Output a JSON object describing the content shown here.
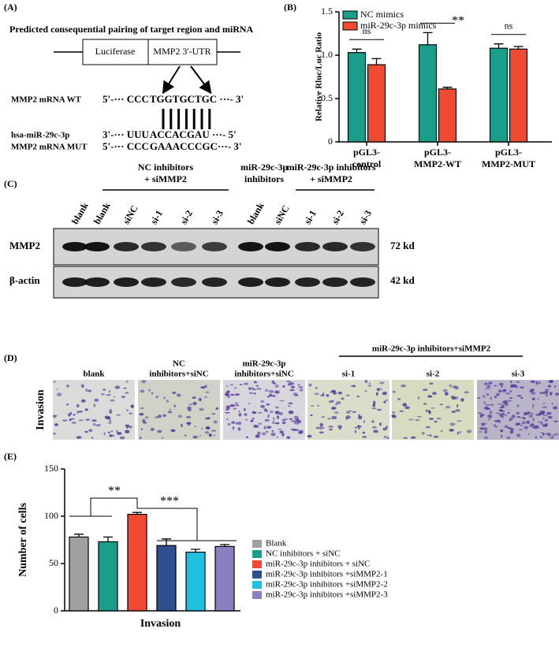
{
  "panels": {
    "a": "(A)",
    "b": "(B)",
    "c": "(C)",
    "d": "(D)",
    "e": "(E)"
  },
  "diagram": {
    "title": "Predicted consequential pairing of target region and miRNA",
    "boxes": [
      "Luciferase",
      "MMP2 3'-UTR"
    ],
    "highlight_color": "#e8211b",
    "rows": [
      {
        "label": "MMP2 mRNA WT",
        "seq": [
          "5'-··· CCC",
          "TGGTGCT",
          "GC ···- 3'"
        ]
      },
      {
        "label": "hsa-miR-29c-3p",
        "seq": [
          "3'-··· UUU",
          "ACCACGA",
          "U ···- 5'"
        ]
      },
      {
        "label": "MMP2 mRNA MUT",
        "seq": [
          "5'-··· CCC",
          "GAAACCC",
          "GC···- 3'"
        ]
      }
    ]
  },
  "blot": {
    "groups": [
      [
        "NC inhibitors",
        "+ siMMP2"
      ],
      [
        "miR-29c-3p",
        "inhibitors"
      ],
      [
        "miR-29c-3p inhibitors",
        "+ siMMP2"
      ]
    ],
    "lanes": [
      "blank",
      "blank",
      "siNC",
      "si-1",
      "si-2",
      "si-3",
      "blank",
      "siNC",
      "si-1",
      "si-2",
      "si-3"
    ],
    "rows": [
      {
        "name": "MMP2",
        "size": "72 kd"
      },
      {
        "name": "β-actin",
        "size": "42 kd"
      }
    ]
  },
  "invasion": {
    "row_label": "Invasion",
    "group": "miR-29c-3p inhibitors+siMMP2",
    "columns": [
      [
        "blank"
      ],
      [
        "NC",
        "inhibitors+siNC"
      ],
      [
        "miR-29c-3p",
        "inhibitors+siNC"
      ],
      [
        "si-1"
      ],
      [
        "si-2"
      ],
      [
        "si-3"
      ]
    ]
  },
  "chart_data": [
    {
      "type": "bar",
      "y_label": "Relative Rluc/Luc Ratio",
      "categories": [
        "pGL3-control",
        "pGL3-MMP2-WT",
        "pGL3-MMP2-MUT"
      ],
      "series": [
        {
          "name": "NC mimics",
          "color": "#1a9e8a",
          "values": [
            1.03,
            1.12,
            1.08
          ],
          "errors": [
            0.04,
            0.14,
            0.05
          ]
        },
        {
          "name": "miR-29c-3p mimics",
          "color": "#f04a32",
          "values": [
            0.89,
            0.61,
            1.07
          ],
          "errors": [
            0.07,
            0.02,
            0.03
          ]
        }
      ],
      "annotations": [
        "ns",
        "**",
        "ns"
      ],
      "ylim": [
        0,
        1.5
      ],
      "yticks": [
        0,
        0.5,
        {
          "value": 1,
          "label": "1.0"
        },
        1.5
      ],
      "legend": "top-left"
    },
    {
      "type": "bar",
      "y_label": "Number of cells",
      "x_label": "Invasion",
      "categories": [
        "Invasion"
      ],
      "series": [
        {
          "name": "Blank",
          "color": "#a0a0a0",
          "values": [
            78
          ],
          "errors": [
            3
          ]
        },
        {
          "name": "NC inhibitors + siNC",
          "color": "#1a9e8a",
          "values": [
            73
          ],
          "errors": [
            5
          ]
        },
        {
          "name": "miR-29c-3p inhibitors + siNC",
          "color": "#f04a32",
          "values": [
            102
          ],
          "errors": [
            2
          ]
        },
        {
          "name": "miR-29c-3p inhibitors +siMMP2-1",
          "color": "#2f4f8f",
          "values": [
            69
          ],
          "errors": [
            7
          ]
        },
        {
          "name": "miR-29c-3p inhibitors +siMMP2-2",
          "color": "#20c0e0",
          "values": [
            62
          ],
          "errors": [
            3
          ]
        },
        {
          "name": "miR-29c-3p inhibitors +siMMP2-3",
          "color": "#8a80c0",
          "values": [
            68
          ],
          "errors": [
            2
          ]
        }
      ],
      "annotations": [
        "**",
        "***"
      ],
      "ylim": [
        0,
        150
      ],
      "yticks": [
        0,
        50,
        100,
        150
      ],
      "legend": "right"
    }
  ]
}
